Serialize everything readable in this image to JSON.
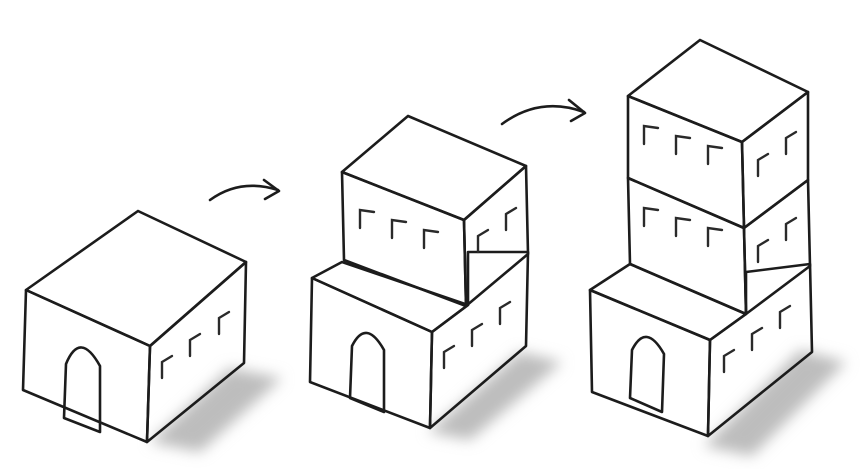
{
  "figure": {
    "steps": [
      {
        "floors": 1,
        "has_door": true
      },
      {
        "floors": 2,
        "has_door": true
      },
      {
        "floors": 3,
        "has_door": true
      }
    ],
    "arrows": 2,
    "colors": {
      "ink": "#1c1c1c",
      "top_face": "#dcdcdc",
      "front_face": "#c6c6c6",
      "side_face": "#8e8e8e",
      "door": "#efefef",
      "shadow": "#bdbdbd",
      "background": "#ffffff"
    }
  }
}
